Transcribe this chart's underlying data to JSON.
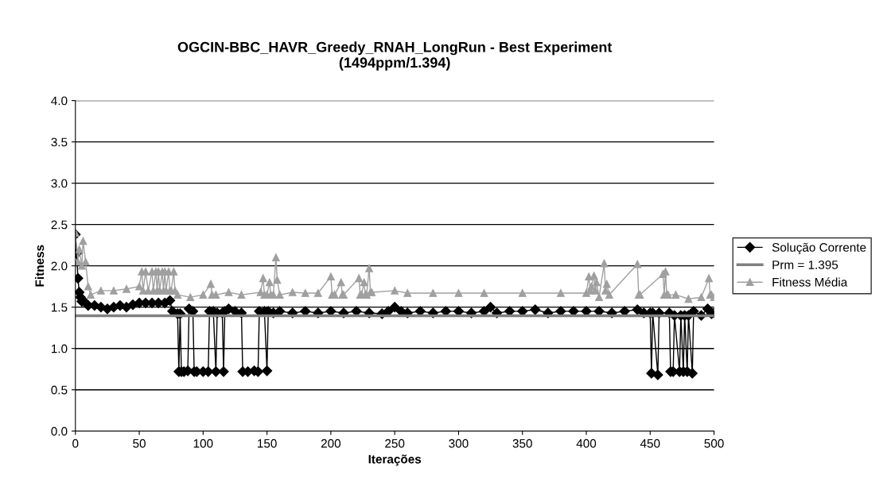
{
  "chart_data": {
    "type": "line",
    "title": "OGCIN-BBC_HAVR_Greedy_RNAH_LongRun - Best Experiment\n(1494ppm/1.394)",
    "xlabel": "Iterações",
    "ylabel": "Fitness",
    "xlim": [
      0,
      500
    ],
    "xticks": [
      0,
      50,
      100,
      150,
      200,
      250,
      300,
      350,
      400,
      450,
      500
    ],
    "ylim": [
      0,
      4
    ],
    "yticks": [
      {
        "value": 0,
        "label": "0.0"
      },
      {
        "value": 0.5,
        "label": "0.5"
      },
      {
        "value": 1,
        "label": "1.0"
      },
      {
        "value": 1.5,
        "label": "1.5"
      },
      {
        "value": 2,
        "label": "2.0"
      },
      {
        "value": 2.5,
        "label": "2.5"
      },
      {
        "value": 3,
        "label": "3.0"
      },
      {
        "value": 3.5,
        "label": "3.5"
      },
      {
        "value": 4,
        "label": "4.0"
      }
    ],
    "grid": "y",
    "legend": "right",
    "series": [
      {
        "name": "Solução Corrente",
        "color": "#000000",
        "marker": "diamond",
        "x": [
          0,
          1,
          2,
          3,
          4,
          5,
          8,
          10,
          15,
          20,
          25,
          30,
          35,
          40,
          45,
          50,
          55,
          60,
          65,
          70,
          74,
          76,
          80,
          81,
          82,
          83,
          85,
          88,
          89,
          92,
          93,
          95,
          100,
          104,
          105,
          108,
          110,
          111,
          115,
          116,
          117,
          120,
          125,
          130,
          131,
          135,
          140,
          143,
          144,
          148,
          150,
          151,
          155,
          160,
          170,
          180,
          190,
          200,
          210,
          220,
          230,
          240,
          245,
          250,
          255,
          260,
          270,
          280,
          290,
          300,
          310,
          320,
          325,
          330,
          340,
          350,
          360,
          370,
          380,
          390,
          400,
          410,
          420,
          430,
          440,
          445,
          450,
          451,
          452,
          456,
          457,
          465,
          466,
          468,
          469,
          473,
          474,
          476,
          477,
          479,
          480,
          483,
          484,
          490,
          495,
          498,
          500
        ],
        "values": [
          2.38,
          2.15,
          1.85,
          1.68,
          1.62,
          1.57,
          1.55,
          1.52,
          1.52,
          1.5,
          1.48,
          1.5,
          1.52,
          1.5,
          1.53,
          1.55,
          1.55,
          1.55,
          1.55,
          1.55,
          1.58,
          1.45,
          1.42,
          0.72,
          1.42,
          0.72,
          0.72,
          0.73,
          1.48,
          1.45,
          0.72,
          0.72,
          0.72,
          0.72,
          1.45,
          1.45,
          0.72,
          1.43,
          1.43,
          0.72,
          1.45,
          1.48,
          1.45,
          1.43,
          0.72,
          0.72,
          0.73,
          0.72,
          1.45,
          1.45,
          0.73,
          1.45,
          1.43,
          1.45,
          1.43,
          1.45,
          1.43,
          1.45,
          1.43,
          1.45,
          1.43,
          1.42,
          1.45,
          1.5,
          1.45,
          1.43,
          1.45,
          1.43,
          1.45,
          1.45,
          1.43,
          1.45,
          1.5,
          1.43,
          1.45,
          1.45,
          1.47,
          1.43,
          1.45,
          1.45,
          1.45,
          1.45,
          1.43,
          1.45,
          1.47,
          1.43,
          1.43,
          0.7,
          1.43,
          0.68,
          1.43,
          1.43,
          0.72,
          0.72,
          1.4,
          0.72,
          1.4,
          0.72,
          1.4,
          0.72,
          1.4,
          0.7,
          1.45,
          1.4,
          1.48,
          1.42,
          1.43
        ]
      },
      {
        "name": "Prm = 1.395",
        "color": "#808080",
        "marker": "none",
        "x": [
          0,
          500
        ],
        "values": [
          1.395,
          1.395
        ]
      },
      {
        "name": "Fitness Média",
        "color": "#a0a0a0",
        "marker": "triangle",
        "x": [
          0,
          2,
          3,
          5,
          6,
          8,
          10,
          12,
          20,
          30,
          40,
          50,
          52,
          53,
          55,
          57,
          60,
          61,
          63,
          64,
          65,
          66,
          68,
          69,
          70,
          71,
          73,
          74,
          75,
          77,
          78,
          80,
          90,
          100,
          106,
          107,
          110,
          120,
          130,
          145,
          147,
          148,
          150,
          152,
          153,
          155,
          157,
          158,
          160,
          170,
          180,
          190,
          200,
          201,
          203,
          208,
          209,
          210,
          222,
          223,
          224,
          226,
          227,
          228,
          230,
          231,
          232,
          250,
          260,
          280,
          300,
          320,
          350,
          380,
          400,
          402,
          403,
          404,
          406,
          407,
          408,
          410,
          414,
          415,
          416,
          418,
          440,
          441,
          442,
          460,
          461,
          462,
          463,
          464,
          470,
          480,
          490,
          496,
          497,
          498,
          500
        ],
        "values": [
          2.4,
          2.05,
          2.2,
          2.0,
          2.3,
          2.05,
          1.75,
          1.65,
          1.7,
          1.7,
          1.72,
          1.75,
          1.93,
          1.7,
          1.93,
          1.7,
          1.93,
          1.7,
          1.93,
          1.7,
          1.93,
          1.7,
          1.93,
          1.7,
          1.93,
          1.7,
          1.93,
          1.7,
          1.7,
          1.93,
          1.7,
          1.65,
          1.62,
          1.65,
          1.78,
          1.65,
          1.65,
          1.68,
          1.65,
          1.68,
          1.85,
          1.65,
          1.65,
          1.8,
          1.65,
          1.65,
          2.1,
          1.83,
          1.65,
          1.68,
          1.67,
          1.67,
          1.87,
          1.65,
          1.65,
          1.8,
          1.65,
          1.65,
          1.85,
          1.65,
          1.65,
          1.8,
          1.65,
          1.65,
          1.97,
          1.68,
          1.68,
          1.7,
          1.67,
          1.67,
          1.67,
          1.67,
          1.67,
          1.67,
          1.67,
          1.87,
          1.7,
          1.75,
          1.88,
          1.7,
          1.8,
          1.62,
          2.03,
          1.7,
          1.78,
          1.65,
          2.02,
          1.65,
          1.65,
          1.9,
          1.65,
          1.93,
          1.65,
          1.65,
          1.65,
          1.6,
          1.62,
          1.85,
          1.65,
          1.65,
          1.62
        ]
      }
    ]
  }
}
